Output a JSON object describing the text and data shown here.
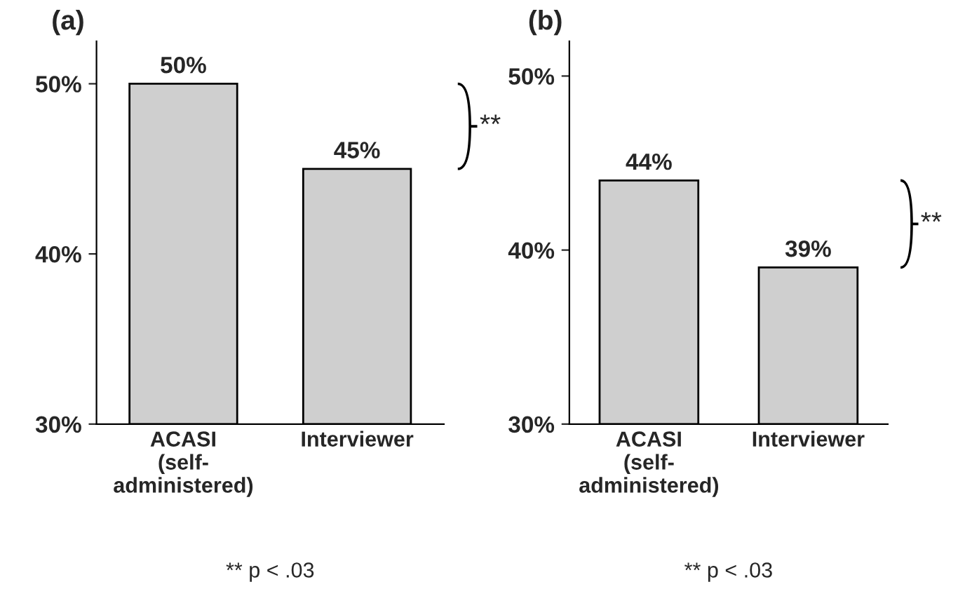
{
  "chart_data": [
    {
      "type": "bar",
      "title": "(a)",
      "categories": [
        "ACASI\n(self-\nadministered)",
        "Interviewer"
      ],
      "values": [
        50,
        45
      ],
      "color": "#cfcfcf",
      "data_labels": true,
      "value_labels": [
        "50%",
        "45%"
      ],
      "ylim": [
        30,
        52.5
      ],
      "yticks": [
        {
          "value": 30,
          "label": "30%"
        },
        {
          "value": 40,
          "label": "40%"
        },
        {
          "value": 50,
          "label": "50%"
        }
      ],
      "annotations": [
        "**",
        "** p < .03"
      ]
    },
    {
      "type": "bar",
      "title": "(b)",
      "categories": [
        "ACASI\n(self-\nadministered)",
        "Interviewer"
      ],
      "values": [
        44,
        39
      ],
      "color": "#cfcfcf",
      "data_labels": true,
      "value_labels": [
        "44%",
        "39%"
      ],
      "ylim": [
        30,
        52
      ],
      "yticks": [
        {
          "value": 30,
          "label": "30%"
        },
        {
          "value": 40,
          "label": "40%"
        },
        {
          "value": 50,
          "label": "50%"
        }
      ],
      "annotations": [
        "**",
        "** p < .03"
      ]
    }
  ]
}
